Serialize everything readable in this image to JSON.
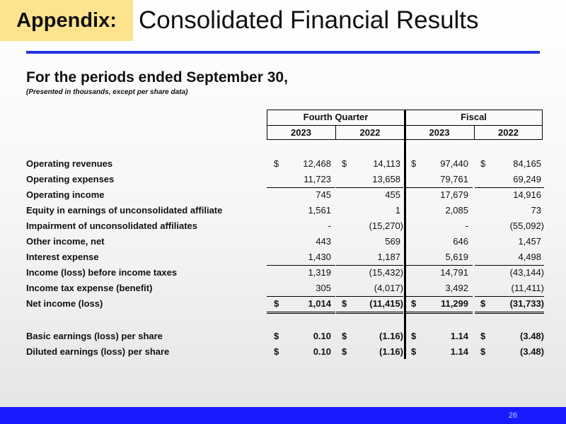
{
  "header": {
    "tag": "Appendix:",
    "title": "Consolidated Financial Results"
  },
  "subtitle": "For the periods ended September 30,",
  "note": "(Presented in thousands, except per share data)",
  "table": {
    "groups": [
      "Fourth Quarter",
      "Fiscal"
    ],
    "years": [
      "2023",
      "2022",
      "2023",
      "2022"
    ],
    "rows": [
      {
        "label": "Operating revenues",
        "cells": [
          {
            "currency": "$",
            "amount": "12,468"
          },
          {
            "currency": "$",
            "amount": "14,113"
          },
          {
            "currency": "$",
            "amount": "97,440"
          },
          {
            "currency": "$",
            "amount": "84,165"
          }
        ]
      },
      {
        "label": "Operating expenses",
        "cells": [
          {
            "amount": "11,723"
          },
          {
            "amount": "13,658"
          },
          {
            "amount": "79,761"
          },
          {
            "amount": "69,249"
          }
        ]
      },
      {
        "label": "Operating income",
        "cells": [
          {
            "amount": "745"
          },
          {
            "amount": "455"
          },
          {
            "amount": "17,679"
          },
          {
            "amount": "14,916"
          }
        ]
      },
      {
        "label": "Equity in earnings of unconsolidated affiliate",
        "cells": [
          {
            "amount": "1,561"
          },
          {
            "amount": "1"
          },
          {
            "amount": "2,085"
          },
          {
            "amount": "73"
          }
        ]
      },
      {
        "label": "Impairment of unconsolidated affiliates",
        "cells": [
          {
            "amount": "-"
          },
          {
            "amount": "(15,270)"
          },
          {
            "amount": "-"
          },
          {
            "amount": "(55,092)"
          }
        ]
      },
      {
        "label": "Other income, net",
        "cells": [
          {
            "amount": "443"
          },
          {
            "amount": "569"
          },
          {
            "amount": "646"
          },
          {
            "amount": "1,457"
          }
        ]
      },
      {
        "label": "Interest expense",
        "cells": [
          {
            "amount": "1,430"
          },
          {
            "amount": "1,187"
          },
          {
            "amount": "5,619"
          },
          {
            "amount": "4,498"
          }
        ]
      },
      {
        "label": "Income (loss) before income taxes",
        "cells": [
          {
            "amount": "1,319"
          },
          {
            "amount": "(15,432)"
          },
          {
            "amount": "14,791"
          },
          {
            "amount": "(43,144)"
          }
        ]
      },
      {
        "label": "Income tax expense (benefit)",
        "cells": [
          {
            "amount": "305"
          },
          {
            "amount": "(4,017)"
          },
          {
            "amount": "3,492"
          },
          {
            "amount": "(11,411)"
          }
        ]
      },
      {
        "label": "Net income (loss)",
        "cells": [
          {
            "currency": "$",
            "amount": "1,014"
          },
          {
            "currency": "$",
            "amount": "(11,415)"
          },
          {
            "currency": "$",
            "amount": "11,299"
          },
          {
            "currency": "$",
            "amount": "(31,733)"
          }
        ]
      }
    ],
    "per_share_rows": [
      {
        "label": "Basic earnings (loss) per share",
        "cells": [
          {
            "currency": "$",
            "amount": "0.10"
          },
          {
            "currency": "$",
            "amount": "(1.16)"
          },
          {
            "currency": "$",
            "amount": "1.14"
          },
          {
            "currency": "$",
            "amount": "(3.48)"
          }
        ]
      },
      {
        "label": "Diluted earnings (loss) per share",
        "cells": [
          {
            "currency": "$",
            "amount": "0.10"
          },
          {
            "currency": "$",
            "amount": "(1.16)"
          },
          {
            "currency": "$",
            "amount": "1.14"
          },
          {
            "currency": "$",
            "amount": "(3.48)"
          }
        ]
      }
    ]
  },
  "page_number": "26"
}
